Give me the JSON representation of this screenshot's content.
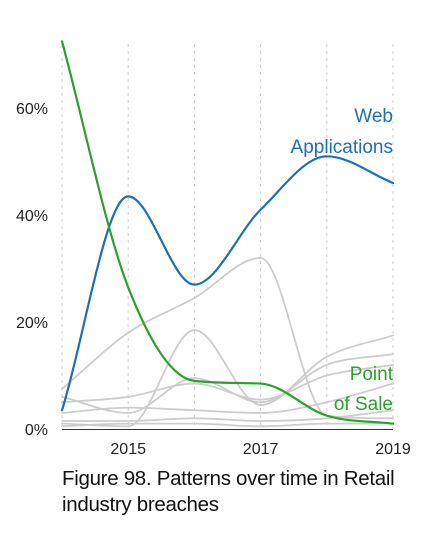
{
  "caption": "Figure 98. Patterns over time in Retail industry breaches",
  "chart_data": {
    "type": "line",
    "title": "",
    "xlabel": "",
    "ylabel": "",
    "x": [
      2014,
      2015,
      2016,
      2017,
      2018,
      2019
    ],
    "xlim": [
      2014,
      2019
    ],
    "ylim": [
      0,
      0.72
    ],
    "x_ticks": [
      {
        "value": 2015,
        "label": "2015"
      },
      {
        "value": 2017,
        "label": "2017"
      },
      {
        "value": 2019,
        "label": "2019"
      }
    ],
    "y_ticks": [
      {
        "value": 0,
        "label": "0%"
      },
      {
        "value": 0.2,
        "label": "20%"
      },
      {
        "value": 0.4,
        "label": "40%"
      },
      {
        "value": 0.6,
        "label": "60%"
      }
    ],
    "grid": "vertical dashed at each year",
    "series": [
      {
        "name": "Web Applications",
        "label_lines": [
          "Web",
          "Applications"
        ],
        "color": "#1f6fb2",
        "highlight": true,
        "values": [
          0.035,
          0.435,
          0.27,
          0.41,
          0.51,
          0.46
        ]
      },
      {
        "name": "Point of Sale",
        "label_lines": [
          "Point",
          "of Sale"
        ],
        "color": "#2ca02c",
        "highlight": true,
        "values": [
          0.725,
          0.265,
          0.09,
          0.085,
          0.025,
          0.01
        ]
      },
      {
        "name": "",
        "color": "#cccccc",
        "highlight": false,
        "values": [
          0.075,
          0.18,
          0.245,
          0.32,
          0.025,
          0.02
        ]
      },
      {
        "name": "",
        "color": "#cccccc",
        "highlight": false,
        "values": [
          0.01,
          0.005,
          0.185,
          0.045,
          0.135,
          0.175
        ]
      },
      {
        "name": "",
        "color": "#cccccc",
        "highlight": false,
        "values": [
          0.06,
          0.03,
          0.095,
          0.05,
          0.12,
          0.14
        ]
      },
      {
        "name": "",
        "color": "#cccccc",
        "highlight": false,
        "values": [
          0.05,
          0.06,
          0.085,
          0.055,
          0.1,
          0.12
        ]
      },
      {
        "name": "",
        "color": "#cccccc",
        "highlight": false,
        "values": [
          0.03,
          0.04,
          0.035,
          0.03,
          0.05,
          0.085
        ]
      },
      {
        "name": "",
        "color": "#cccccc",
        "highlight": false,
        "values": [
          0.015,
          0.015,
          0.02,
          0.015,
          0.02,
          0.035
        ]
      },
      {
        "name": "",
        "color": "#cccccc",
        "highlight": false,
        "values": [
          0.005,
          0.01,
          0.01,
          0.005,
          0.01,
          0.01
        ]
      }
    ]
  }
}
